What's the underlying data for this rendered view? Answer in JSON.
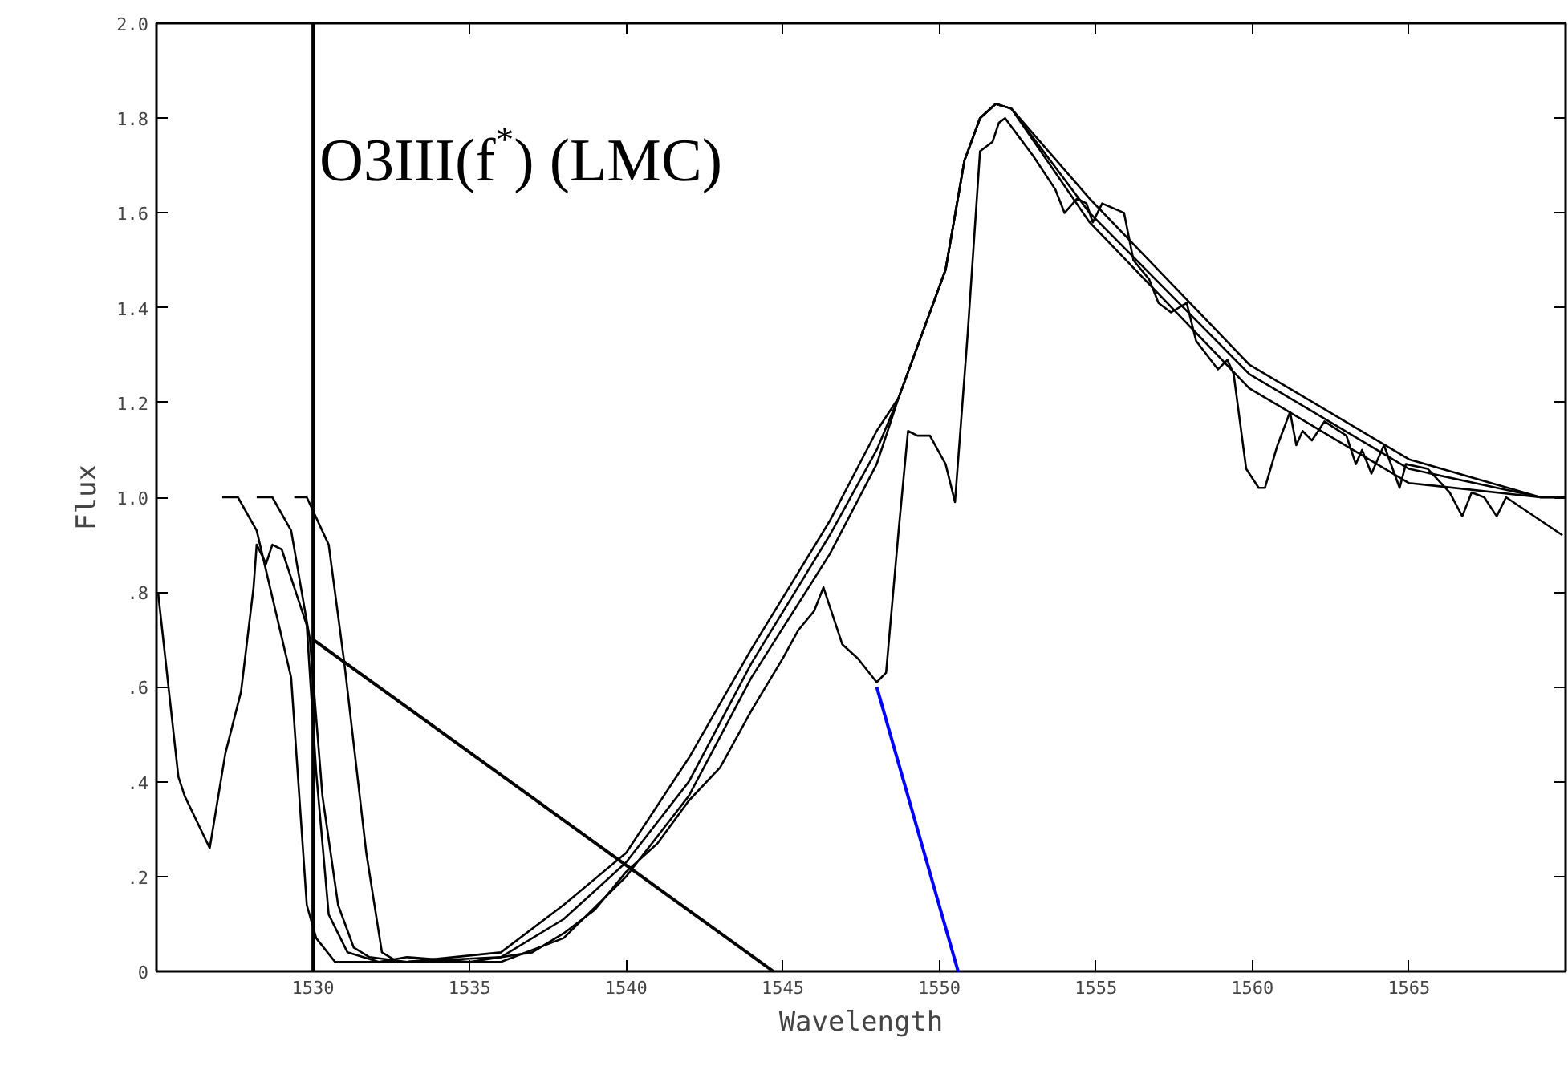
{
  "chart_data": {
    "type": "line",
    "xlabel": "Wavelength",
    "ylabel": "Flux",
    "annotations": [
      "O3III(f$^{*}$) (LMC)"
    ],
    "xlim": [
      1525,
      1570
    ],
    "ylim": [
      0,
      2.0
    ],
    "xticks": [
      1530,
      1535,
      1540,
      1545,
      1550,
      1555,
      1560,
      1565
    ],
    "yticks": [
      0,
      {
        "value": 0.2,
        "label": ".2"
      },
      {
        "value": 0.4,
        "label": ".4"
      },
      {
        "value": 0.6,
        "label": ".6"
      },
      {
        "value": 0.8,
        "label": ".8"
      },
      {
        "value": 1.0,
        "label": "1.0"
      },
      {
        "value": 1.2,
        "label": "1.2"
      },
      {
        "value": 1.4,
        "label": "1.4"
      },
      {
        "value": 1.6,
        "label": "1.6"
      },
      {
        "value": 1.8,
        "label": "1.8"
      },
      {
        "value": 2.0,
        "label": "2.0"
      }
    ],
    "grid": false,
    "ref_lines": [
      {
        "axis": "x",
        "value": 1530,
        "color": "#000000"
      }
    ],
    "series": [
      {
        "color": "#000000",
        "x": [
          1525.05,
          1525.7,
          1525.9,
          1526.7,
          1527.2,
          1527.7,
          1528.1,
          1528.2,
          1528.5,
          1528.7,
          1529.0,
          1529.5,
          1529.8,
          1530.1,
          1530.5,
          1531.1,
          1531.6,
          1532.1,
          1533,
          1535,
          1537,
          1538,
          1539,
          1540,
          1541,
          1542,
          1543,
          1544,
          1545,
          1545.5,
          1546,
          1546.3,
          1546.9,
          1547.4,
          1548.0,
          1548.3,
          1548.7,
          1549.0,
          1549.3,
          1549.6,
          1549.7,
          1550.2,
          1550.5,
          1550.9,
          1551.3,
          1551.7,
          1551.9,
          1552.1,
          1553.0,
          1553.7,
          1554.0,
          1554.4,
          1554.7,
          1554.9,
          1555.2,
          1555.9,
          1556.2,
          1556.7,
          1557.0,
          1557.4,
          1557.9,
          1558.2,
          1558.9,
          1559.2,
          1559.4,
          1559.8,
          1560.2,
          1560.4,
          1560.8,
          1561.2,
          1561.4,
          1561.6,
          1561.9,
          1562.3,
          1563.0,
          1563.3,
          1563.5,
          1563.8,
          1564.2,
          1564.7,
          1564.9,
          1565.6,
          1566.3,
          1566.7,
          1567.0,
          1567.4,
          1567.8,
          1568.1,
          1569.9
        ],
        "values": [
          0.8,
          0.41,
          0.37,
          0.26,
          0.46,
          0.59,
          0.81,
          0.9,
          0.86,
          0.9,
          0.89,
          0.79,
          0.73,
          0.42,
          0.12,
          0.04,
          0.03,
          0.02,
          0.03,
          0.02,
          0.04,
          0.08,
          0.13,
          0.21,
          0.27,
          0.36,
          0.43,
          0.55,
          0.66,
          0.72,
          0.76,
          0.81,
          0.69,
          0.66,
          0.61,
          0.63,
          0.93,
          1.14,
          1.13,
          1.13,
          1.13,
          1.07,
          0.99,
          1.34,
          1.73,
          1.75,
          1.79,
          1.8,
          1.72,
          1.65,
          1.6,
          1.63,
          1.62,
          1.58,
          1.62,
          1.6,
          1.5,
          1.46,
          1.41,
          1.39,
          1.41,
          1.33,
          1.27,
          1.29,
          1.26,
          1.06,
          1.02,
          1.02,
          1.11,
          1.18,
          1.11,
          1.14,
          1.12,
          1.16,
          1.13,
          1.07,
          1.1,
          1.05,
          1.11,
          1.02,
          1.07,
          1.06,
          1.01,
          0.96,
          1.01,
          1.0,
          0.96,
          1.0,
          0.92
        ]
      },
      {
        "color": "#000000",
        "x": [
          1527.1,
          1527.6,
          1528.2,
          1529.3,
          1529.8,
          1530.1,
          1530.7,
          1533,
          1536,
          1538,
          1540,
          1542,
          1544,
          1546.5,
          1548,
          1548.7,
          1550.2,
          1550.8,
          1551.3,
          1551.8,
          1552.3,
          1554.8,
          1559.9,
          1565,
          1569.2,
          1570
        ],
        "values": [
          1.0,
          1.0,
          0.93,
          0.62,
          0.14,
          0.07,
          0.02,
          0.02,
          0.04,
          0.14,
          0.25,
          0.45,
          0.68,
          0.95,
          1.14,
          1.21,
          1.48,
          1.71,
          1.8,
          1.83,
          1.82,
          1.63,
          1.28,
          1.08,
          1.0,
          1.0
        ]
      },
      {
        "color": "#000000",
        "x": [
          1528.2,
          1528.7,
          1529.3,
          1529.9,
          1530.3,
          1530.8,
          1531.3,
          1531.8,
          1533,
          1536,
          1538,
          1540,
          1542,
          1544,
          1546.5,
          1548,
          1548.7,
          1550.2,
          1550.8,
          1551.3,
          1551.8,
          1552.3,
          1554.8,
          1559.9,
          1565,
          1569.2,
          1570
        ],
        "values": [
          1.0,
          1.0,
          0.93,
          0.7,
          0.37,
          0.14,
          0.05,
          0.03,
          0.02,
          0.03,
          0.11,
          0.23,
          0.4,
          0.65,
          0.92,
          1.1,
          1.21,
          1.48,
          1.71,
          1.8,
          1.83,
          1.82,
          1.6,
          1.26,
          1.06,
          1.0,
          1.0
        ]
      },
      {
        "color": "#000000",
        "x": [
          1529.4,
          1529.8,
          1530.5,
          1531.0,
          1531.7,
          1532.2,
          1532.7,
          1534,
          1536,
          1538,
          1540,
          1542,
          1544,
          1546.5,
          1548,
          1548.7,
          1550.2,
          1550.8,
          1551.3,
          1551.8,
          1552.3,
          1554.8,
          1559.9,
          1565,
          1569.2,
          1570
        ],
        "values": [
          1.0,
          1.0,
          0.9,
          0.65,
          0.25,
          0.04,
          0.02,
          0.02,
          0.02,
          0.07,
          0.2,
          0.37,
          0.62,
          0.88,
          1.07,
          1.21,
          1.48,
          1.71,
          1.8,
          1.83,
          1.82,
          1.58,
          1.23,
          1.03,
          1.0,
          1.0
        ]
      },
      {
        "color": "#000000",
        "x": [
          1530,
          1544.7
        ],
        "values": [
          0.7,
          0
        ]
      },
      {
        "color": "#0000ff",
        "x": [
          1548,
          1550.6
        ],
        "values": [
          0.6,
          0
        ]
      }
    ]
  }
}
